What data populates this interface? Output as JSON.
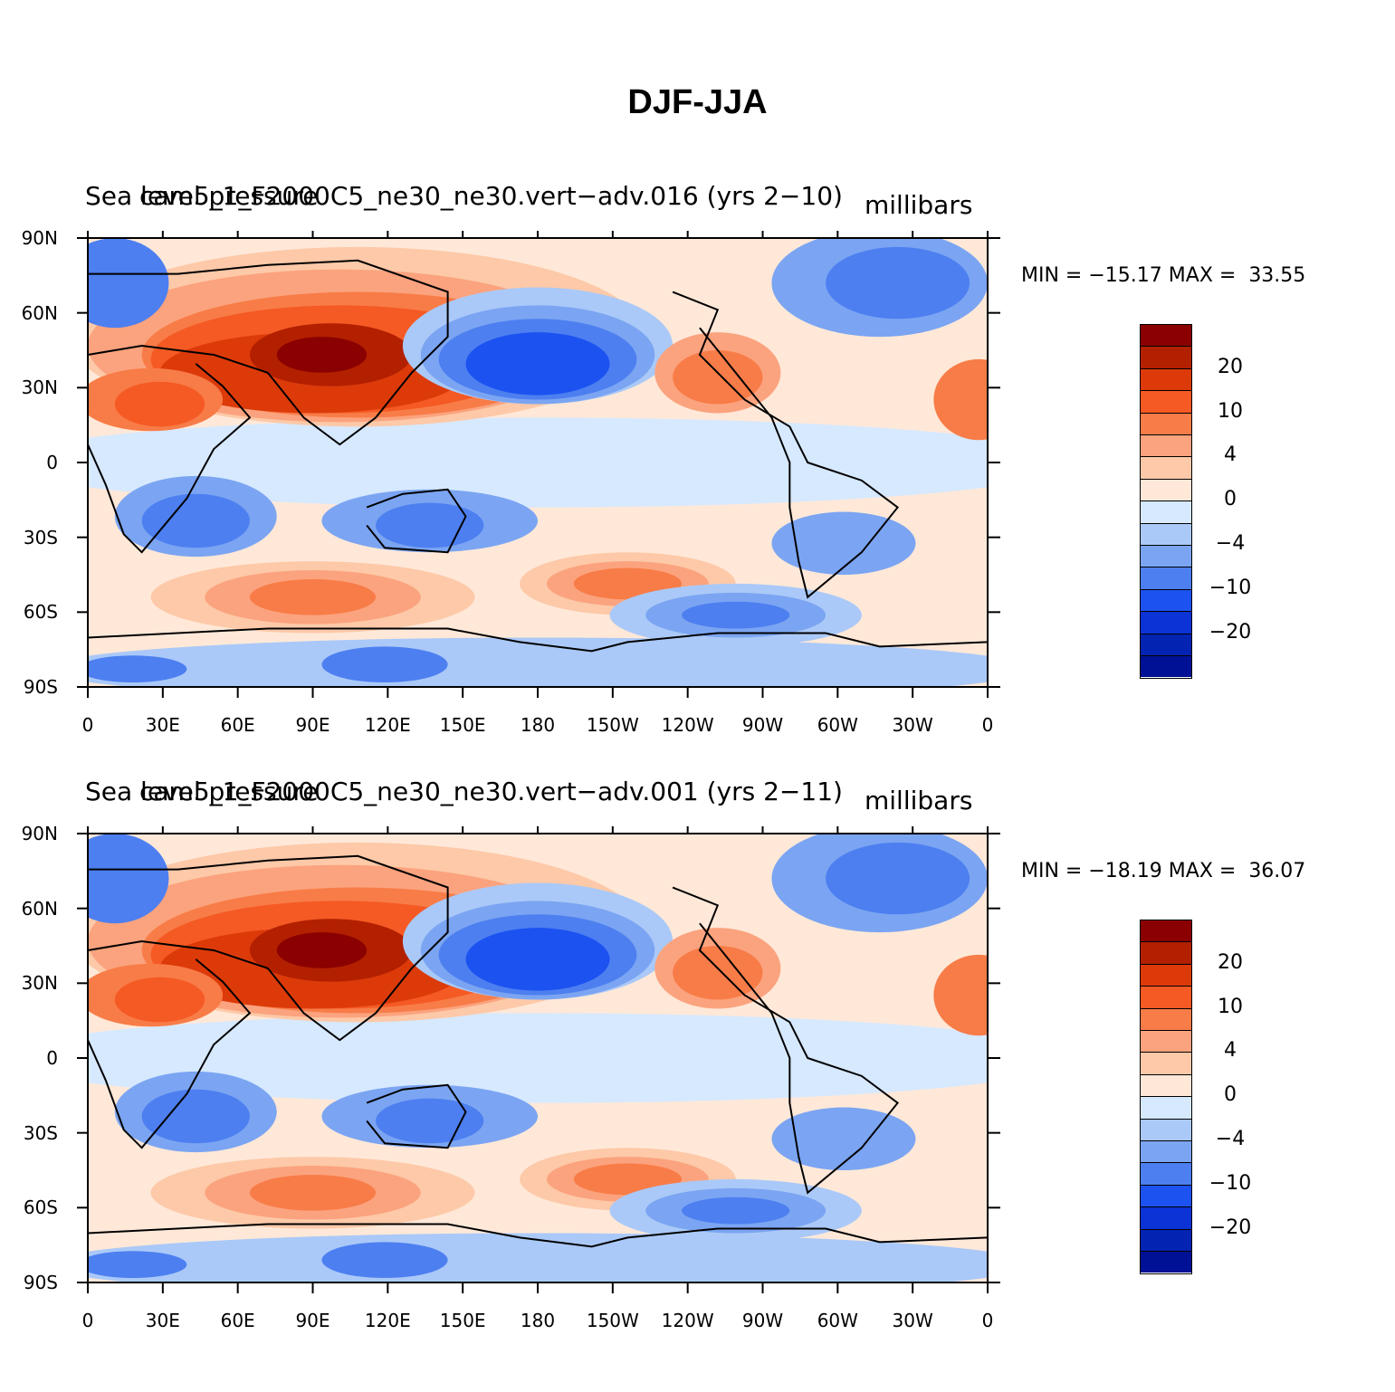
{
  "title": "DJF-JJA",
  "lat_labels": [
    "90N",
    "60N",
    "30N",
    "0",
    "30S",
    "60S",
    "90S"
  ],
  "lon_labels": [
    "0",
    "30E",
    "60E",
    "90E",
    "120E",
    "150E",
    "180",
    "150W",
    "120W",
    "90W",
    "60W",
    "30W",
    "0"
  ],
  "legend": {
    "colors": [
      "#8b0000",
      "#b22000",
      "#dd3a0a",
      "#f55a24",
      "#f87c48",
      "#fba37e",
      "#fdc9a8",
      "#ffe8d8",
      "#d6e9ff",
      "#aac9f8",
      "#7ba5f2",
      "#4d7ff0",
      "#1c52f0",
      "#0c33d5",
      "#0324b2",
      "#001196"
    ],
    "labels": [
      "20",
      "10",
      "4",
      "0",
      "−4",
      "−10",
      "−20"
    ],
    "label_after_color_index": [
      1,
      3,
      5,
      7,
      9,
      11,
      13
    ]
  },
  "panels": [
    {
      "left_title": "Sea level pressure",
      "case_title": "cam5_1_F2000C5_ne30_ne30.vert−adv.016 (yrs 2−10)",
      "units": "millibars",
      "min_label": "MIN =",
      "min": "−15.17",
      "max_label": "MAX =",
      "max": "33.55"
    },
    {
      "left_title": "Sea level pressure",
      "case_title": "cam5_1_F2000C5_ne30_ne30.vert−adv.001 (yrs 2−11)",
      "units": "millibars",
      "min_label": "MIN =",
      "min": "−18.19",
      "max_label": "MAX =",
      "max": "36.07"
    }
  ]
}
